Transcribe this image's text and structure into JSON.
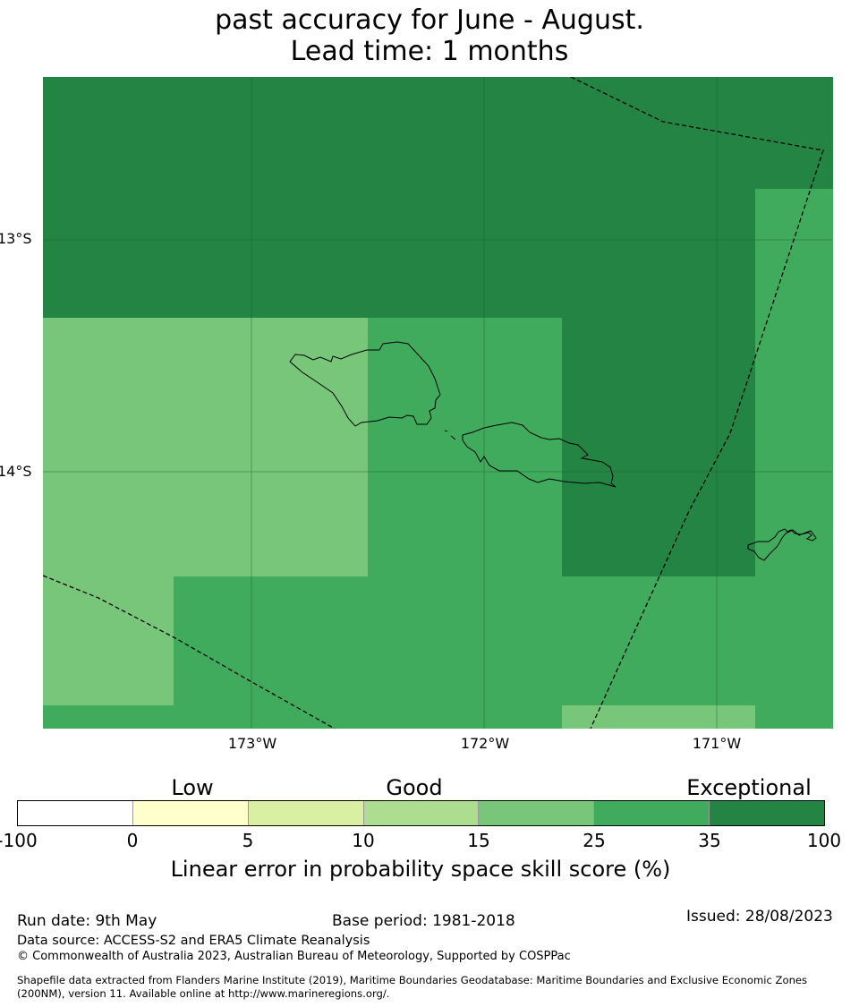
{
  "title": {
    "line1": "past accuracy for June - August.",
    "line2": "Lead time: 1 months"
  },
  "map": {
    "lat_labels": [
      "13°S",
      "14°S"
    ],
    "lon_labels": [
      "173°W",
      "172°W",
      "171°W"
    ],
    "colors": {
      "exceptional": "#238443",
      "dark_good": "#41ab5d",
      "good": "#78c679",
      "land_outline": "#000000",
      "gridline": "#1a5c2e"
    },
    "boundary_style": "dashed"
  },
  "legend": {
    "categories": [
      "Low",
      "Good",
      "Exceptional"
    ],
    "tick_labels": [
      "-100",
      "0",
      "5",
      "10",
      "15",
      "25",
      "35",
      "100"
    ],
    "colors": [
      "#ffffff",
      "#ffffcc",
      "#d9f0a3",
      "#addd8e",
      "#78c679",
      "#41ab5d",
      "#238443"
    ],
    "caption": "Linear error in probability space skill score (%)"
  },
  "footer": {
    "run_date": "Run date: 9th May",
    "base_period": "Base period: 1981-2018",
    "issued": "Issued: 28/08/2023",
    "data_source": "Data source: ACCESS-S2 and ERA5 Climate Reanalysis",
    "copyright": "© Commonwealth of Australia 2023, Australian Bureau of Meteorology, Supported by COSPPac",
    "shapefile_line1": "Shapefile data extracted from Flanders Marine Institute (2019), Maritime Boundaries Geodatabase: Maritime Boundaries and Exclusive Economic Zones",
    "shapefile_line2": "(200NM), version 11. Available online at http://www.marineregions.org/."
  }
}
